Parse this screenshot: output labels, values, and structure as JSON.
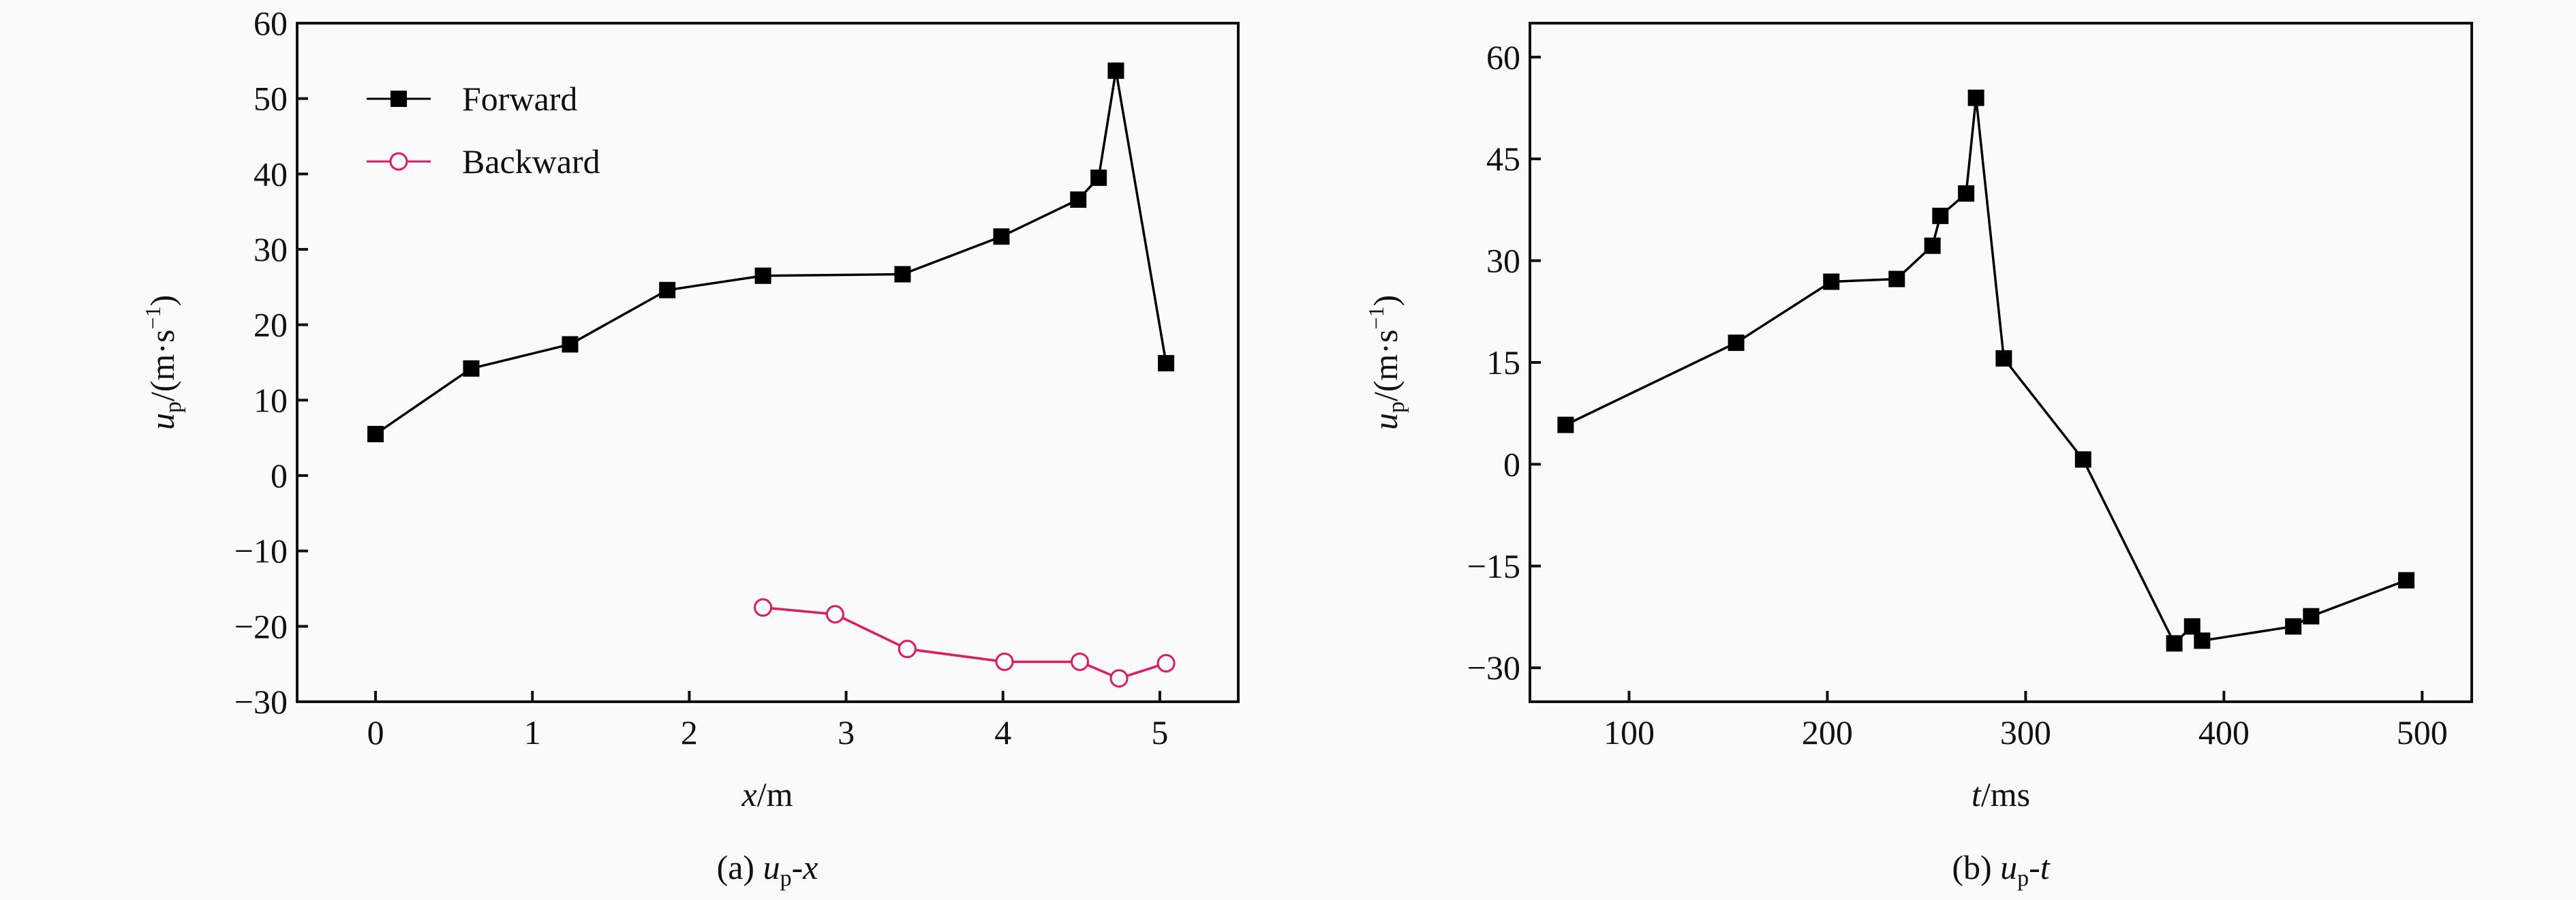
{
  "chart_data": [
    {
      "type": "line",
      "caption": {
        "prefix": "(a) ",
        "var": "u",
        "sub": "p",
        "suffix": "-x"
      },
      "xlabel": {
        "var": "x",
        "unit": "/m"
      },
      "ylabel": {
        "var": "u",
        "sub": "p",
        "unit": "/(m·s",
        "sup": "−1",
        "close": ")"
      },
      "xlim": [
        -0.5,
        5.5
      ],
      "ylim": [
        -30,
        60
      ],
      "xticks": [
        0,
        1,
        2,
        3,
        4,
        5
      ],
      "yticks": [
        -30,
        -20,
        -10,
        0,
        10,
        20,
        30,
        40,
        50,
        60
      ],
      "ytick_labels": [
        "−30",
        "−20",
        "−10",
        "0",
        "10",
        "20",
        "30",
        "40",
        "50",
        "60"
      ],
      "grid": false,
      "legend": "top-left",
      "series": [
        {
          "name": "Forward",
          "color": "#000000",
          "marker": "filled-square",
          "x": [
            0.0,
            0.61,
            1.24,
            1.86,
            2.47,
            3.36,
            3.99,
            4.48,
            4.61,
            4.72,
            5.04
          ],
          "y": [
            5.5,
            14.2,
            17.4,
            24.6,
            26.5,
            26.7,
            31.7,
            36.6,
            39.5,
            53.7,
            14.9
          ]
        },
        {
          "name": "Backward",
          "color": "#e8175d",
          "marker": "open-circle",
          "x": [
            2.47,
            2.93,
            3.39,
            4.01,
            4.49,
            4.74,
            5.04
          ],
          "y": [
            -17.5,
            -18.4,
            -23.0,
            -24.7,
            -24.7,
            -26.9,
            -24.9
          ]
        }
      ]
    },
    {
      "type": "line",
      "caption": {
        "prefix": "(b) ",
        "var": "u",
        "sub": "p",
        "suffix": "-t"
      },
      "xlabel": {
        "var": "t",
        "unit": "/ms"
      },
      "ylabel": {
        "var": "u",
        "sub": "p",
        "unit": "/(m·s",
        "sup": "−1",
        "close": ")"
      },
      "xlim": [
        50,
        525
      ],
      "ylim": [
        -35,
        65
      ],
      "xticks": [
        100,
        200,
        300,
        400,
        500
      ],
      "yticks": [
        -30,
        -15,
        0,
        15,
        30,
        45,
        60
      ],
      "ytick_labels": [
        "−30",
        "−15",
        "0",
        "15",
        "30",
        "45",
        "60"
      ],
      "grid": false,
      "series": [
        {
          "color": "#000000",
          "marker": "filled-square",
          "x": [
            68,
            154,
            202,
            235,
            253,
            257,
            270,
            275,
            289,
            329,
            375,
            384,
            389,
            435,
            444,
            492
          ],
          "y": [
            5.8,
            17.9,
            26.9,
            27.3,
            32.2,
            36.6,
            39.9,
            54.0,
            15.6,
            0.7,
            -26.4,
            -23.9,
            -26.0,
            -23.9,
            -22.4,
            -17.1
          ]
        }
      ]
    }
  ]
}
